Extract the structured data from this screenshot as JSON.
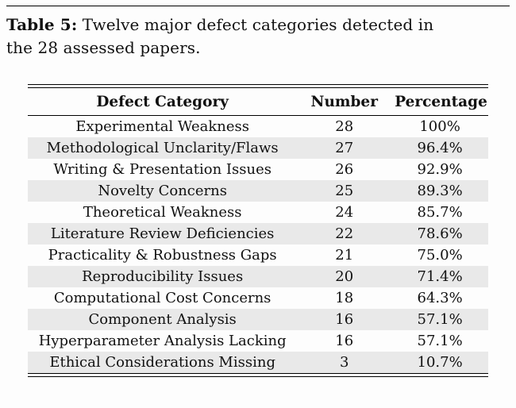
{
  "caption": {
    "label": "Table 5:",
    "line1": "Twelve major defect categories detected in",
    "line2": "the 28 assessed papers."
  },
  "table": {
    "headers": [
      "Defect Category",
      "Number",
      "Percentage"
    ],
    "rows": [
      {
        "category": "Experimental Weakness",
        "number": "28",
        "percentage": "100%"
      },
      {
        "category": "Methodological Unclarity/Flaws",
        "number": "27",
        "percentage": "96.4%"
      },
      {
        "category": "Writing & Presentation Issues",
        "number": "26",
        "percentage": "92.9%"
      },
      {
        "category": "Novelty Concerns",
        "number": "25",
        "percentage": "89.3%"
      },
      {
        "category": "Theoretical Weakness",
        "number": "24",
        "percentage": "85.7%"
      },
      {
        "category": "Literature Review Deficiencies",
        "number": "22",
        "percentage": "78.6%"
      },
      {
        "category": "Practicality & Robustness Gaps",
        "number": "21",
        "percentage": "75.0%"
      },
      {
        "category": "Reproducibility Issues",
        "number": "20",
        "percentage": "71.4%"
      },
      {
        "category": "Computational Cost Concerns",
        "number": "18",
        "percentage": "64.3%"
      },
      {
        "category": "Component Analysis",
        "number": "16",
        "percentage": "57.1%"
      },
      {
        "category": "Hyperparameter Analysis Lacking",
        "number": "16",
        "percentage": "57.1%"
      },
      {
        "category": "Ethical Considerations Missing",
        "number": "3",
        "percentage": "10.7%"
      }
    ]
  },
  "colors": {
    "stripe": "#e9e9e9",
    "rule": "#000000",
    "text": "#111111",
    "background": "#fdfdfd"
  }
}
